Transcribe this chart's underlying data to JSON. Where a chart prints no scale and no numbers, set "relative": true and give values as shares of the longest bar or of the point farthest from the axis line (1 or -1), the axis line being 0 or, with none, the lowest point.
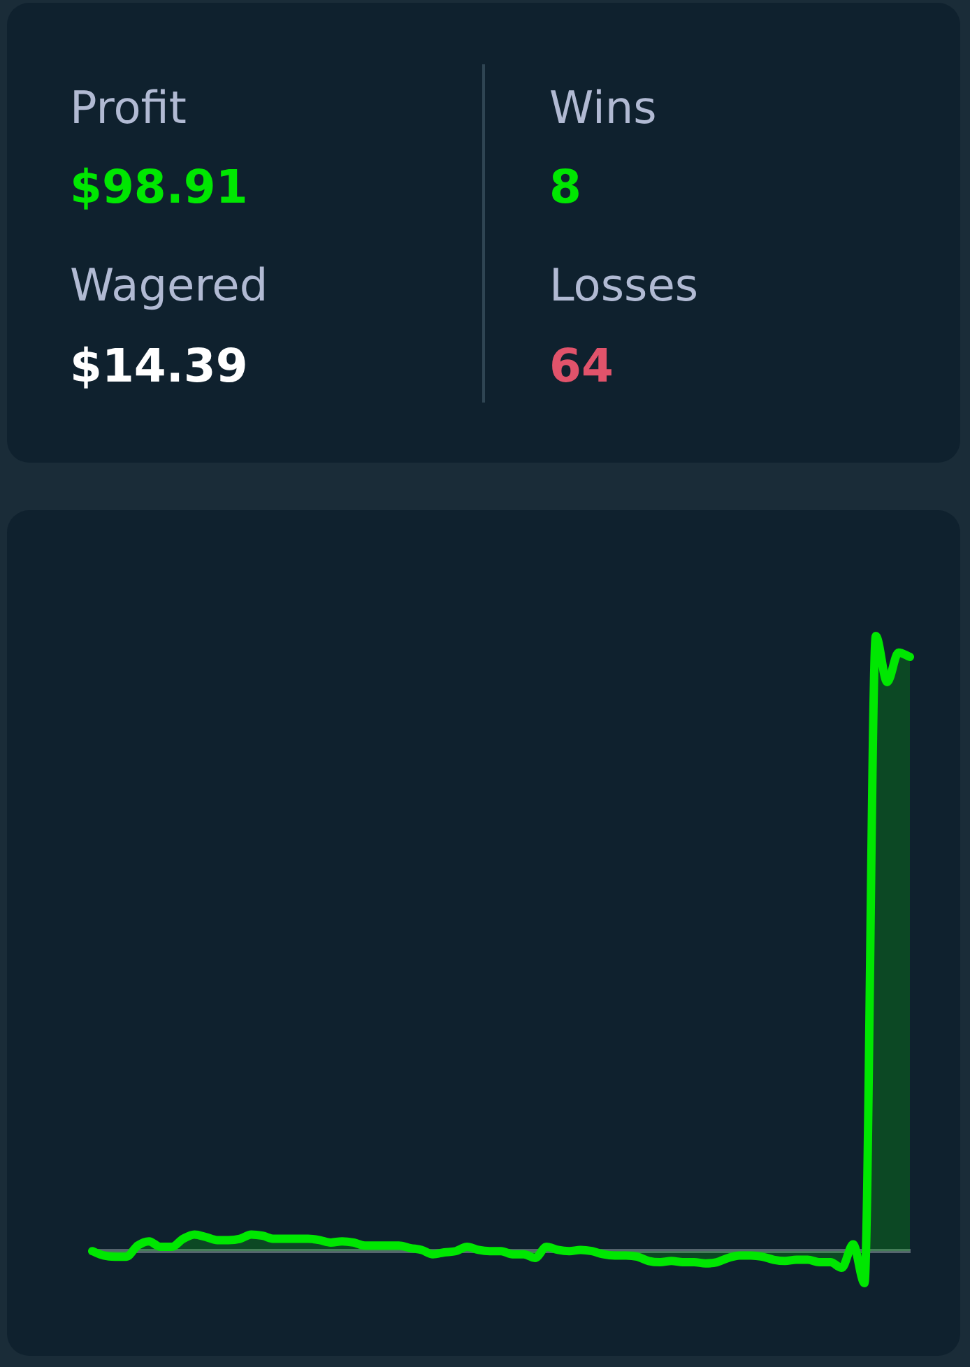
{
  "chart_data": [
    {
      "type": "other",
      "annotations": [
        "Profit",
        "$98.91",
        "Wagered",
        "$14.39",
        "Wins",
        "8",
        "Losses",
        "64"
      ]
    },
    {
      "type": "area",
      "relative": true,
      "marker": "none",
      "categories": [
        null,
        null,
        null,
        null,
        null,
        null,
        null,
        null,
        null,
        null,
        null,
        null,
        null,
        null,
        null,
        null,
        null,
        null,
        null,
        null,
        null,
        null,
        null,
        null,
        null,
        null,
        null,
        null,
        null,
        null,
        null,
        null,
        null,
        null,
        null,
        null,
        null,
        null,
        null,
        null,
        null,
        null,
        null,
        null,
        null,
        null,
        null,
        null,
        null,
        null,
        null,
        null,
        null,
        null,
        null,
        null,
        null,
        null,
        null,
        null,
        null,
        null,
        null,
        null,
        null,
        null,
        null,
        null,
        null,
        null,
        null,
        null,
        null
      ],
      "series": [
        {
          "color": "#00e701",
          "values": [
            0,
            -0.007,
            -0.009,
            -0.009,
            0.009,
            0.016,
            0.007,
            0.007,
            0.02,
            0.027,
            0.023,
            0.018,
            0.018,
            0.02,
            0.027,
            0.025,
            0.02,
            0.02,
            0.02,
            0.02,
            0.018,
            0.014,
            0.016,
            0.014,
            0.009,
            0.009,
            0.009,
            0.009,
            0.005,
            0.002,
            -0.005,
            -0.002,
            0,
            0.007,
            0.002,
            0,
            0,
            -0.005,
            -0.005,
            -0.011,
            0.007,
            0.002,
            0,
            0.002,
            0,
            -0.005,
            -0.007,
            -0.007,
            -0.009,
            -0.016,
            -0.018,
            -0.016,
            -0.018,
            -0.018,
            -0.02,
            -0.018,
            -0.011,
            -0.007,
            -0.007,
            -0.009,
            -0.014,
            -0.016,
            -0.014,
            -0.014,
            -0.018,
            -0.018,
            -0.027,
            0.011,
            -0.052,
            1,
            0.925,
            0.973,
            0.966
          ]
        }
      ]
    }
  ]
}
